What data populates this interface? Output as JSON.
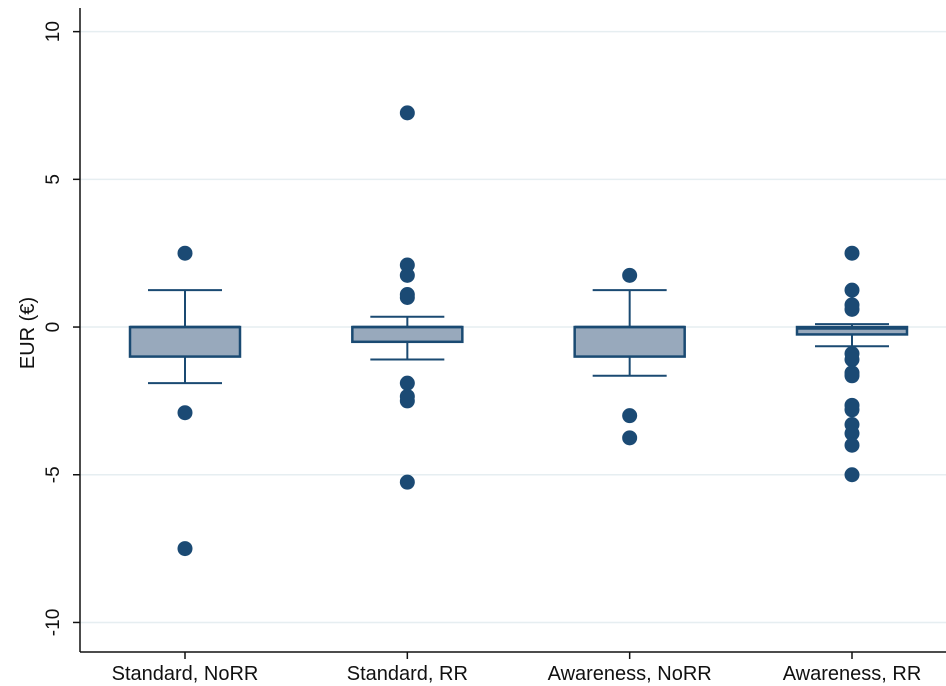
{
  "chart_data": {
    "type": "box",
    "title": "",
    "xlabel": "",
    "ylabel": "EUR (€)",
    "ylim": [
      -11,
      10.8
    ],
    "yticks": [
      10,
      5,
      0,
      -5,
      -10
    ],
    "ytick_labels": [
      "10",
      "5",
      "0",
      "-5",
      "-10"
    ],
    "grid": true,
    "legend": "none",
    "categories": [
      "Standard, NoRR",
      "Standard, RR",
      "Awareness, NoRR",
      "Awareness, RR"
    ],
    "boxes": [
      {
        "category": "Standard, NoRR",
        "whisker_low": -1.9,
        "q1": -1.0,
        "median": 0.0,
        "q3": 0.0,
        "whisker_high": 1.25,
        "outliers": [
          2.5,
          -2.9,
          -7.5
        ]
      },
      {
        "category": "Standard, RR",
        "whisker_low": -1.1,
        "q1": -0.5,
        "median": 0.0,
        "q3": 0.0,
        "whisker_high": 0.35,
        "outliers": [
          7.25,
          2.1,
          1.75,
          1.1,
          1.0,
          -1.9,
          -2.35,
          -2.5,
          -5.25
        ]
      },
      {
        "category": "Awareness, NoRR",
        "whisker_low": -1.65,
        "q1": -1.0,
        "median": 0.0,
        "q3": 0.0,
        "whisker_high": 1.25,
        "outliers": [
          1.75,
          -3.0,
          -3.75
        ]
      },
      {
        "category": "Awareness, RR",
        "whisker_low": -0.65,
        "q1": -0.25,
        "median": -0.05,
        "q3": 0.0,
        "whisker_high": 0.1,
        "outliers": [
          2.5,
          1.25,
          0.75,
          0.6,
          -0.9,
          -1.1,
          -1.55,
          -1.65,
          -2.65,
          -2.8,
          -3.3,
          -3.6,
          -4.0,
          -5.0
        ]
      }
    ],
    "colors": {
      "box_fill": "#98a9bc",
      "box_stroke": "#1a4a72",
      "point": "#1b4a74",
      "grid": "#e6eef1",
      "axis": "#111111"
    }
  }
}
